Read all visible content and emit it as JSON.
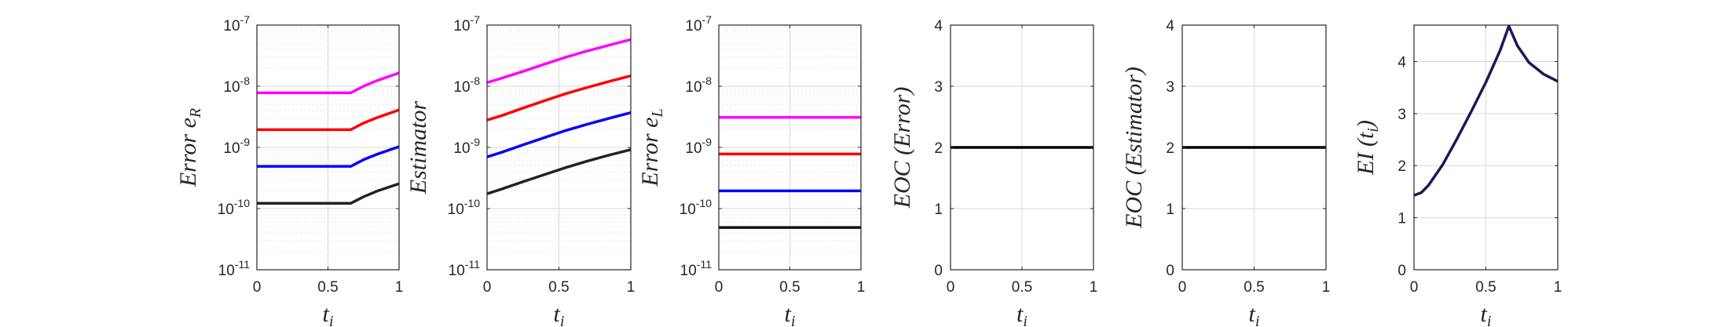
{
  "chart_data": [
    {
      "type": "line",
      "xlabel": "t",
      "xlabel_sub": "i",
      "ylabel": "Error e",
      "ylabel_sub": "R",
      "yscale": "log",
      "xlim": [
        0,
        1
      ],
      "ylim": [
        1e-11,
        1e-07
      ],
      "xticks": [
        "0",
        "0.5",
        "1"
      ],
      "yticks": [
        {
          "base": "10",
          "exp": "-11"
        },
        {
          "base": "10",
          "exp": "-10"
        },
        {
          "base": "10",
          "exp": "-9"
        },
        {
          "base": "10",
          "exp": "-8"
        },
        {
          "base": "10",
          "exp": "-7"
        }
      ],
      "grid": true,
      "series": [
        {
          "color": "#ff00ff",
          "x": [
            0,
            0.66,
            0.75,
            0.85,
            1.0
          ],
          "y": [
            7.8e-09,
            7.8e-09,
            1e-08,
            1.25e-08,
            1.65e-08
          ]
        },
        {
          "color": "#ff0000",
          "x": [
            0,
            0.66,
            0.75,
            0.85,
            1.0
          ],
          "y": [
            1.95e-09,
            1.95e-09,
            2.5e-09,
            3.1e-09,
            4.1e-09
          ]
        },
        {
          "color": "#0000ff",
          "x": [
            0,
            0.66,
            0.75,
            0.85,
            1.0
          ],
          "y": [
            4.9e-10,
            4.9e-10,
            6.3e-10,
            7.8e-10,
            1.03e-09
          ]
        },
        {
          "color": "#222222",
          "x": [
            0,
            0.66,
            0.75,
            0.85,
            1.0
          ],
          "y": [
            1.22e-10,
            1.22e-10,
            1.56e-10,
            1.95e-10,
            2.55e-10
          ]
        }
      ]
    },
    {
      "type": "line",
      "xlabel": "t",
      "xlabel_sub": "i",
      "ylabel": "Estimator",
      "ylabel_sub": "",
      "yscale": "log",
      "xlim": [
        0,
        1
      ],
      "ylim": [
        1e-11,
        1e-07
      ],
      "xticks": [
        "0",
        "0.5",
        "1"
      ],
      "yticks": [
        {
          "base": "10",
          "exp": "-11"
        },
        {
          "base": "10",
          "exp": "-10"
        },
        {
          "base": "10",
          "exp": "-9"
        },
        {
          "base": "10",
          "exp": "-8"
        },
        {
          "base": "10",
          "exp": "-7"
        }
      ],
      "grid": true,
      "series": [
        {
          "color": "#ff00ff",
          "x": [
            0,
            0.1,
            0.25,
            0.4,
            0.55,
            0.7,
            0.85,
            1.0
          ],
          "y": [
            1.15e-08,
            1.35e-08,
            1.75e-08,
            2.3e-08,
            3e-08,
            3.8e-08,
            4.7e-08,
            5.8e-08
          ]
        },
        {
          "color": "#ff0000",
          "x": [
            0,
            0.1,
            0.25,
            0.4,
            0.55,
            0.7,
            0.85,
            1.0
          ],
          "y": [
            2.8e-09,
            3.3e-09,
            4.4e-09,
            5.8e-09,
            7.6e-09,
            9.6e-09,
            1.2e-08,
            1.48e-08
          ]
        },
        {
          "color": "#0000ff",
          "x": [
            0,
            0.1,
            0.25,
            0.4,
            0.55,
            0.7,
            0.85,
            1.0
          ],
          "y": [
            7e-10,
            8.3e-10,
            1.1e-09,
            1.45e-09,
            1.9e-09,
            2.4e-09,
            3e-09,
            3.7e-09
          ]
        },
        {
          "color": "#222222",
          "x": [
            0,
            0.1,
            0.25,
            0.4,
            0.55,
            0.7,
            0.85,
            1.0
          ],
          "y": [
            1.75e-10,
            2.08e-10,
            2.75e-10,
            3.6e-10,
            4.7e-10,
            6e-10,
            7.5e-10,
            9.2e-10
          ]
        }
      ]
    },
    {
      "type": "line",
      "xlabel": "t",
      "xlabel_sub": "i",
      "ylabel": "Error e",
      "ylabel_sub": "L",
      "yscale": "log",
      "xlim": [
        0,
        1
      ],
      "ylim": [
        1e-11,
        1e-07
      ],
      "xticks": [
        "0",
        "0.5",
        "1"
      ],
      "yticks": [
        {
          "base": "10",
          "exp": "-11"
        },
        {
          "base": "10",
          "exp": "-10"
        },
        {
          "base": "10",
          "exp": "-9"
        },
        {
          "base": "10",
          "exp": "-8"
        },
        {
          "base": "10",
          "exp": "-7"
        }
      ],
      "grid": true,
      "series": [
        {
          "color": "#ff00ff",
          "x": [
            0,
            1
          ],
          "y": [
            3.1e-09,
            3.1e-09
          ]
        },
        {
          "color": "#ff0000",
          "x": [
            0,
            1
          ],
          "y": [
            7.8e-10,
            7.8e-10
          ]
        },
        {
          "color": "#0000ff",
          "x": [
            0,
            1
          ],
          "y": [
            1.95e-10,
            1.95e-10
          ]
        },
        {
          "color": "#111111",
          "x": [
            0,
            1
          ],
          "y": [
            4.9e-11,
            4.9e-11
          ]
        }
      ]
    },
    {
      "type": "line",
      "xlabel": "t",
      "xlabel_sub": "i",
      "ylabel": "EOC (Error)",
      "ylabel_sub": "",
      "yscale": "linear",
      "xlim": [
        0,
        1
      ],
      "ylim": [
        0,
        4
      ],
      "xticks": [
        "0",
        "0.5",
        "1"
      ],
      "yticks": [
        "0",
        "1",
        "2",
        "3",
        "4"
      ],
      "grid": true,
      "series": [
        {
          "color": "#000000",
          "x": [
            0,
            1
          ],
          "y": [
            2,
            2
          ]
        }
      ]
    },
    {
      "type": "line",
      "xlabel": "t",
      "xlabel_sub": "i",
      "ylabel": "EOC (Estimator)",
      "ylabel_sub": "",
      "yscale": "linear",
      "xlim": [
        0,
        1
      ],
      "ylim": [
        0,
        4
      ],
      "xticks": [
        "0",
        "0.5",
        "1"
      ],
      "yticks": [
        "0",
        "1",
        "2",
        "3",
        "4"
      ],
      "grid": true,
      "series": [
        {
          "color": "#000000",
          "x": [
            0,
            1
          ],
          "y": [
            2,
            2
          ]
        }
      ]
    },
    {
      "type": "line",
      "xlabel": "t",
      "xlabel_sub": "i",
      "ylabel": "EI (t",
      "ylabel_sub": "i",
      "ylabel_suffix": ")",
      "yscale": "linear",
      "xlim": [
        0,
        1
      ],
      "ylim": [
        0,
        4.7
      ],
      "xticks": [
        "0",
        "0.5",
        "1"
      ],
      "yticks": [
        "0",
        "1",
        "2",
        "3",
        "4"
      ],
      "grid": true,
      "series": [
        {
          "color": "#1a1a55",
          "x": [
            0,
            0.05,
            0.1,
            0.2,
            0.3,
            0.4,
            0.5,
            0.6,
            0.66,
            0.72,
            0.8,
            0.9,
            1.0
          ],
          "y": [
            1.43,
            1.48,
            1.62,
            2.02,
            2.52,
            3.05,
            3.6,
            4.22,
            4.68,
            4.3,
            3.98,
            3.76,
            3.62
          ]
        }
      ]
    }
  ]
}
